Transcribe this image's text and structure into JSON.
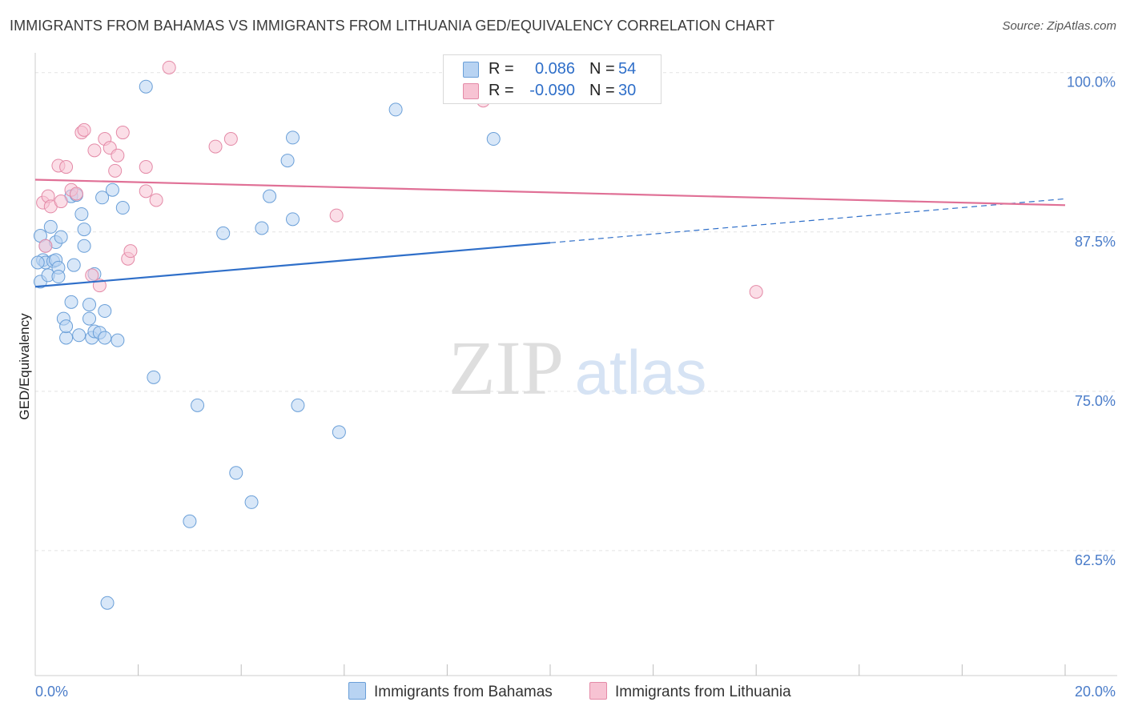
{
  "title": "IMMIGRANTS FROM BAHAMAS VS IMMIGRANTS FROM LITHUANIA GED/EQUIVALENCY CORRELATION CHART",
  "source": "Source: ZipAtlas.com",
  "watermark": {
    "zip": "ZIP",
    "atlas": "atlas"
  },
  "colors": {
    "blue_fill": "#b8d3f2",
    "blue_stroke": "#6a9fd8",
    "blue_line": "#2f6fc9",
    "pink_fill": "#f7c3d3",
    "pink_stroke": "#e48aa7",
    "pink_line": "#e07096",
    "tick_label": "#4a7cc9",
    "grid": "#e3e3e3"
  },
  "legend": [
    {
      "series": "Immigrants from Bahamas",
      "r_label": "R =",
      "r_value": "0.086",
      "n_label": "N =",
      "n_value": "54"
    },
    {
      "series": "Immigrants from Lithuania",
      "r_label": "R =",
      "r_value": "-0.090",
      "n_label": "N =",
      "n_value": "30"
    }
  ],
  "chart_data": {
    "type": "scatter",
    "title": "IMMIGRANTS FROM BAHAMAS VS IMMIGRANTS FROM LITHUANIA GED/EQUIVALENCY CORRELATION CHART",
    "xlabel": "",
    "ylabel": "GED/Equivalency",
    "xlim": [
      0,
      20
    ],
    "ylim": [
      52.7,
      101.3
    ],
    "x_tick_labels": {
      "left": "0.0%",
      "right": "20.0%"
    },
    "y_ticks": [
      100.0,
      87.5,
      75.0,
      62.5
    ],
    "y_tick_labels": [
      "100.0%",
      "87.5%",
      "75.0%",
      "62.5%"
    ],
    "grid": true,
    "legend_position": "top-center",
    "series": [
      {
        "name": "Immigrants from Bahamas",
        "color": "blue",
        "r": 0.086,
        "n": 54,
        "trend": {
          "y_at_x0": 83.2,
          "solid_until_x": 10.0,
          "y_at_x20": 90.1
        },
        "points": [
          [
            0.1,
            83.6
          ],
          [
            0.1,
            87.2
          ],
          [
            0.15,
            85.3
          ],
          [
            0.2,
            86.4
          ],
          [
            0.2,
            85.1
          ],
          [
            0.25,
            84.1
          ],
          [
            0.3,
            87.9
          ],
          [
            0.35,
            85.2
          ],
          [
            0.4,
            86.7
          ],
          [
            0.4,
            85.3
          ],
          [
            0.45,
            84.7
          ],
          [
            0.45,
            84.0
          ],
          [
            0.5,
            87.1
          ],
          [
            0.55,
            80.7
          ],
          [
            0.6,
            79.2
          ],
          [
            0.6,
            80.1
          ],
          [
            0.7,
            90.3
          ],
          [
            0.7,
            82.0
          ],
          [
            0.75,
            84.9
          ],
          [
            0.8,
            90.4
          ],
          [
            0.85,
            79.4
          ],
          [
            0.9,
            88.9
          ],
          [
            0.95,
            87.7
          ],
          [
            0.95,
            86.4
          ],
          [
            1.05,
            81.8
          ],
          [
            1.05,
            80.7
          ],
          [
            1.1,
            79.2
          ],
          [
            1.15,
            84.2
          ],
          [
            1.15,
            79.7
          ],
          [
            1.25,
            79.6
          ],
          [
            1.3,
            90.2
          ],
          [
            1.35,
            81.3
          ],
          [
            1.35,
            79.2
          ],
          [
            1.4,
            58.4
          ],
          [
            1.5,
            90.8
          ],
          [
            1.6,
            79.0
          ],
          [
            1.7,
            89.4
          ],
          [
            2.15,
            98.9
          ],
          [
            2.3,
            76.1
          ],
          [
            3.0,
            64.8
          ],
          [
            3.15,
            73.9
          ],
          [
            3.65,
            87.4
          ],
          [
            3.9,
            68.6
          ],
          [
            4.2,
            66.3
          ],
          [
            4.4,
            87.8
          ],
          [
            4.55,
            90.3
          ],
          [
            4.9,
            93.1
          ],
          [
            5.0,
            94.9
          ],
          [
            5.0,
            88.5
          ],
          [
            5.1,
            73.9
          ],
          [
            5.9,
            71.8
          ],
          [
            7.0,
            97.1
          ],
          [
            8.9,
            94.8
          ],
          [
            0.05,
            85.1
          ]
        ]
      },
      {
        "name": "Immigrants from Lithuania",
        "color": "pink",
        "r": -0.09,
        "n": 30,
        "trend": {
          "y_at_x0": 91.6,
          "y_at_x20": 89.6
        },
        "points": [
          [
            0.15,
            89.8
          ],
          [
            0.2,
            86.4
          ],
          [
            0.25,
            90.3
          ],
          [
            0.3,
            89.5
          ],
          [
            0.45,
            92.7
          ],
          [
            0.5,
            89.9
          ],
          [
            0.6,
            92.6
          ],
          [
            0.7,
            90.8
          ],
          [
            0.8,
            90.5
          ],
          [
            0.9,
            95.3
          ],
          [
            0.95,
            95.5
          ],
          [
            1.1,
            84.1
          ],
          [
            1.15,
            93.9
          ],
          [
            1.25,
            83.3
          ],
          [
            1.35,
            94.8
          ],
          [
            1.45,
            94.1
          ],
          [
            1.55,
            92.3
          ],
          [
            1.6,
            93.5
          ],
          [
            1.7,
            95.3
          ],
          [
            1.8,
            85.4
          ],
          [
            1.85,
            86.0
          ],
          [
            2.15,
            90.7
          ],
          [
            2.15,
            92.6
          ],
          [
            2.35,
            90.0
          ],
          [
            2.6,
            100.4
          ],
          [
            3.5,
            94.2
          ],
          [
            3.8,
            94.8
          ],
          [
            5.85,
            88.8
          ],
          [
            8.7,
            97.8
          ],
          [
            14.0,
            82.8
          ]
        ]
      }
    ]
  }
}
